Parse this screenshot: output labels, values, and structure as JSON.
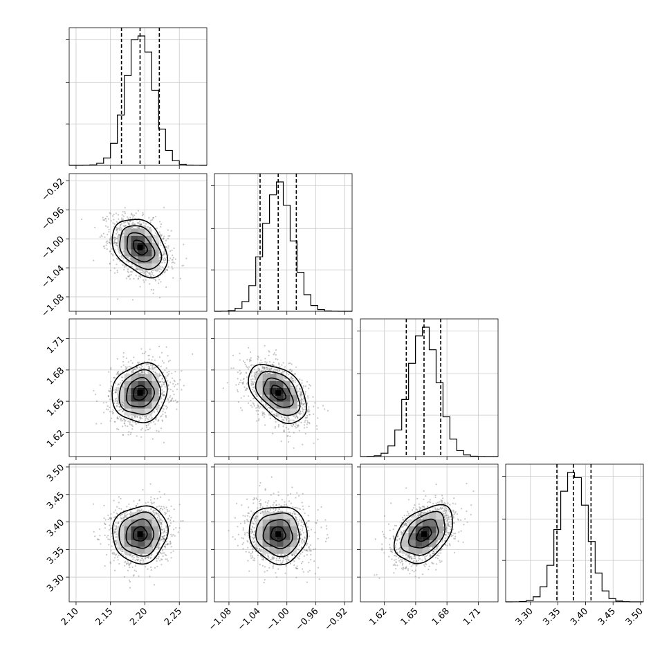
{
  "chart_data": {
    "type": "corner",
    "parameters": [
      {
        "range": [
          2.09,
          2.29
        ],
        "ticks": [
          2.1,
          2.15,
          2.2,
          2.25
        ],
        "tick_labels": [
          "2.10",
          "2.15",
          "2.20",
          "2.25"
        ],
        "mean": 2.193,
        "sd": 0.02,
        "quantiles": [
          2.166,
          2.193,
          2.221
        ]
      },
      {
        "range": [
          -1.1,
          -0.91
        ],
        "ticks": [
          -1.08,
          -1.04,
          -1.0,
          -0.96,
          -0.92
        ],
        "tick_labels": [
          "−1.08",
          "−1.04",
          "−1.00",
          "−0.96",
          "−0.92"
        ],
        "mean": -1.012,
        "sd": 0.02,
        "quantiles": [
          -1.037,
          -1.012,
          -0.987
        ]
      },
      {
        "range": [
          1.597,
          1.729
        ],
        "ticks": [
          1.62,
          1.65,
          1.68,
          1.71
        ],
        "tick_labels": [
          "1.62",
          "1.65",
          "1.68",
          "1.71"
        ],
        "mean": 1.658,
        "sd": 0.014,
        "quantiles": [
          1.641,
          1.658,
          1.674
        ]
      },
      {
        "range": [
          3.255,
          3.505
        ],
        "ticks": [
          3.3,
          3.35,
          3.4,
          3.45,
          3.5
        ],
        "tick_labels": [
          "3.30",
          "3.35",
          "3.40",
          "3.45",
          "3.50"
        ],
        "mean": 3.378,
        "sd": 0.026,
        "quantiles": [
          3.348,
          3.378,
          3.41
        ]
      }
    ],
    "correlations": {
      "1-0": -0.35,
      "2-0": 0.1,
      "2-1": -0.45,
      "3-0": 0.05,
      "3-1": -0.05,
      "3-2": 0.4
    },
    "histogram_bins": 20,
    "contour_levels": [
      0.5,
      1.0,
      1.5,
      2.0
    ],
    "grid": true,
    "colors": {
      "contour": "#000000",
      "points": "#808080",
      "density": "#000000"
    }
  }
}
